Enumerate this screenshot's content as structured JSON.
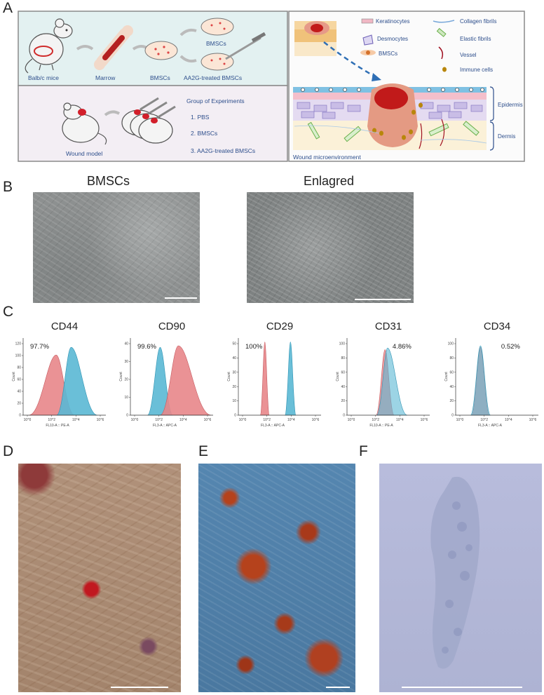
{
  "panels": {
    "a": "A",
    "b": "B",
    "c": "C",
    "d": "D",
    "e": "E",
    "f": "F"
  },
  "panel_a": {
    "isolation": {
      "mice": "Balb/c mice",
      "marrow": "Marrow",
      "bmscs": "BMSCs",
      "top_dish": "BMSCs",
      "treated_dish": "AA2G-treated BMSCs"
    },
    "experiment": {
      "wound_model": "Wound model",
      "group_title": "Group of Experiments",
      "groups": [
        "1. PBS",
        "2. BMSCs",
        "3. AA2G-treated BMSCs"
      ]
    },
    "legend": {
      "keratinocytes": "Keratinocytes",
      "collagen": "Collagen fibrils",
      "desmocytes": "Desmocytes",
      "elastic": "Elastic fibrils",
      "bmscs": "BMSCs",
      "vessel": "Vessel",
      "immune": "Immune cells"
    },
    "layers": {
      "epidermis": "Epidermis",
      "dermis": "Dermis"
    },
    "micro_title": "Wound microenvironment"
  },
  "panel_b": {
    "left_title": "BMSCs",
    "right_title": "Enlagred"
  },
  "panel_c": {
    "count_label": "Count",
    "histograms": [
      {
        "marker": "CD44",
        "percent": "97.7%",
        "xlabel": "FL10-A :: PE-A",
        "yticks": [
          "0",
          "20",
          "40",
          "60",
          "80",
          "100",
          "120"
        ],
        "xticks": [
          "10^0",
          "10^2",
          "10^4",
          "10^6"
        ]
      },
      {
        "marker": "CD90",
        "percent": "99.6%",
        "xlabel": "FL3-A :: APC-A",
        "yticks": [
          "0",
          "10",
          "20",
          "30",
          "40"
        ],
        "xticks": [
          "10^0",
          "10^2",
          "10^4",
          "10^6"
        ]
      },
      {
        "marker": "CD29",
        "percent": "100%",
        "xlabel": "FL3-A :: APC-A",
        "yticks": [
          "0",
          "10",
          "20",
          "30",
          "40",
          "50"
        ],
        "xticks": [
          "10^0",
          "10^2",
          "10^4",
          "10^6"
        ]
      },
      {
        "marker": "CD31",
        "percent": "4.86%",
        "xlabel": "FL10-A :: PE-A",
        "yticks": [
          "0",
          "20",
          "40",
          "60",
          "80",
          "100"
        ],
        "xticks": [
          "10^0",
          "10^2",
          "10^4",
          "10^6"
        ]
      },
      {
        "marker": "CD34",
        "percent": "0.52%",
        "xlabel": "FL3-A :: APC-A",
        "yticks": [
          "0",
          "20",
          "40",
          "60",
          "80",
          "100"
        ],
        "xticks": [
          "10^0",
          "10^2",
          "10^4",
          "10^6"
        ]
      }
    ]
  },
  "colors": {
    "control": "#e8868a",
    "stained": "#5ab8d4",
    "panel_a_top": "#e3f1f1",
    "panel_a_bottom": "#f3eef4",
    "text_blue": "#2e4f8c"
  }
}
